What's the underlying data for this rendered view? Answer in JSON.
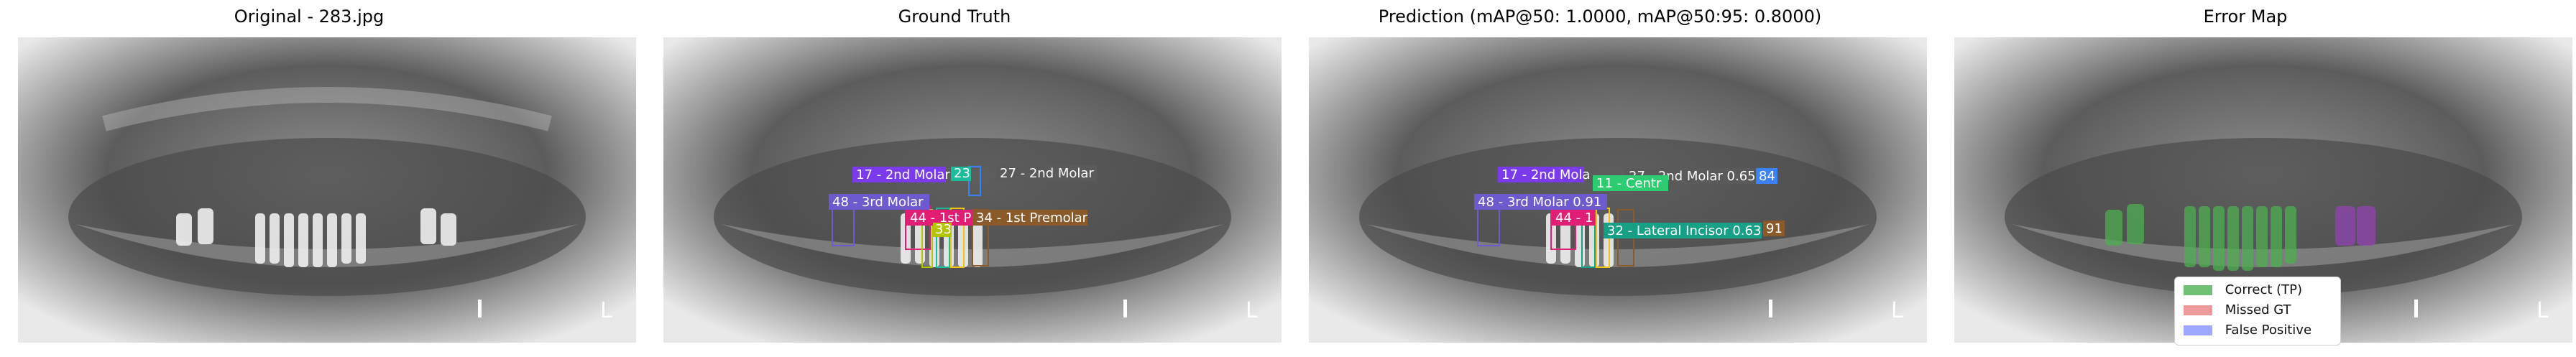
{
  "titles": {
    "original": "Original - 283.jpg",
    "ground_truth": "Ground Truth",
    "prediction": "Prediction (mAP@50: 1.0000, mAP@50:95: 0.8000)",
    "error_map": "Error Map"
  },
  "ground_truth_labels": [
    {
      "text": "17 - 2nd Molar",
      "color": "#7c3aed"
    },
    {
      "text": "48 - 3rd Molar",
      "color": "#6d5acf"
    },
    {
      "text": "27 - 2nd Molar",
      "color": "#5a5a5a"
    },
    {
      "text": "44 - 1st P",
      "color": "#e11d74"
    },
    {
      "text": "34 - 1st Premolar",
      "color": "#8a5a2b"
    },
    {
      "text": "23",
      "color": "#1abc9c"
    },
    {
      "text": "33",
      "color": "#b5c400"
    }
  ],
  "prediction_labels": [
    {
      "text": "17 - 2nd Mola",
      "color": "#7c3aed"
    },
    {
      "text": "48 - 3rd Molar 0.91",
      "color": "#6d5acf"
    },
    {
      "text": "27 - 2nd Molar 0.65",
      "color": "#5a5a5a"
    },
    {
      "text": "84",
      "color": "#3b82f6"
    },
    {
      "text": "44 - 1",
      "color": "#e11d74"
    },
    {
      "text": "11 - Centr",
      "color": "#2ecc71"
    },
    {
      "text": "32 - Lateral Incisor 0.63",
      "color": "#16a085"
    },
    {
      "text": "91",
      "color": "#8a5a2b"
    }
  ],
  "legend": [
    {
      "label": "Correct (TP)",
      "color": "#4caf50"
    },
    {
      "label": "Missed GT",
      "color": "#ef9a9a"
    },
    {
      "label": "False Positive",
      "color": "#9fa8ff"
    }
  ]
}
